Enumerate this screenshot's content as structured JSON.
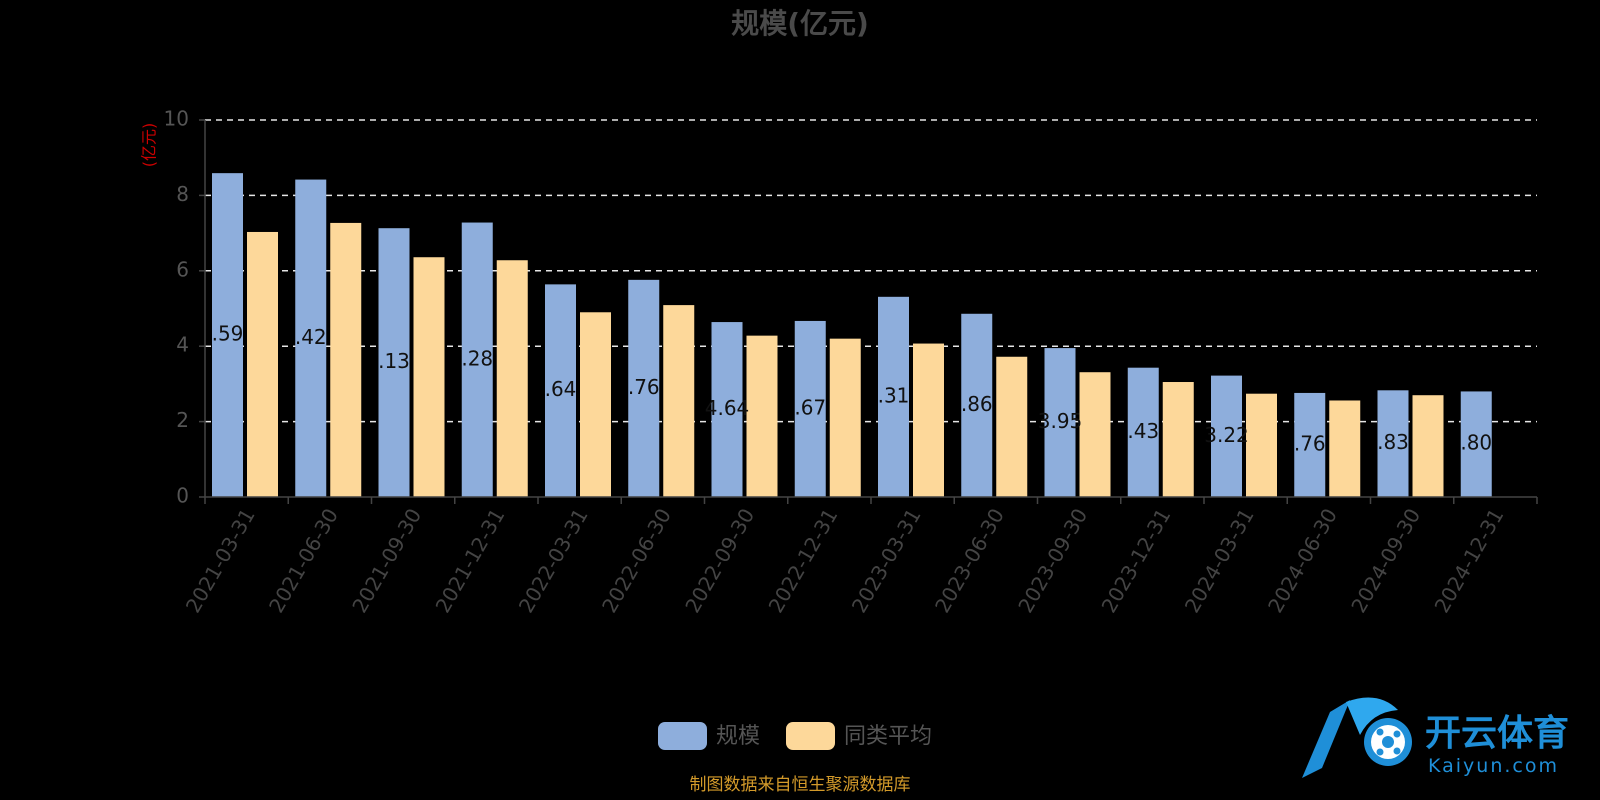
{
  "chart_data": {
    "type": "bar",
    "title": "规模(亿元)",
    "ylabel": "(亿元)",
    "ylim": [
      0,
      10
    ],
    "yticks": [
      0,
      2,
      4,
      6,
      8,
      10
    ],
    "grid": true,
    "legend_position": "bottom",
    "categories": [
      "2021-03-31",
      "2021-06-30",
      "2021-09-30",
      "2021-12-31",
      "2022-03-31",
      "2022-06-30",
      "2022-09-30",
      "2022-12-31",
      "2023-03-31",
      "2023-06-30",
      "2023-09-30",
      "2023-12-31",
      "2024-03-31",
      "2024-06-30",
      "2024-09-30",
      "2024-12-31"
    ],
    "series": [
      {
        "name": "规模",
        "color": "#8eaedc",
        "values": [
          8.59,
          8.42,
          7.13,
          7.28,
          5.64,
          5.76,
          4.64,
          4.67,
          5.31,
          4.86,
          3.95,
          3.43,
          3.22,
          2.76,
          2.83,
          2.8
        ],
        "labels": [
          ".59",
          ".42",
          ".13",
          ".28",
          ".64",
          ".76",
          "4.64",
          ".67",
          ".31",
          ".86",
          "3.95",
          ".43",
          "3.22",
          ".76",
          ".83",
          ".80"
        ]
      },
      {
        "name": "同类平均",
        "color": "#fdd89a",
        "values": [
          7.03,
          7.27,
          6.36,
          6.28,
          4.9,
          5.09,
          4.28,
          4.2,
          4.07,
          3.72,
          3.31,
          3.05,
          2.74,
          2.56,
          2.7,
          null
        ]
      }
    ]
  },
  "footer": {
    "source": "制图数据来自恒生聚源数据库"
  },
  "watermark": {
    "brand": "开云体育",
    "url": "Kaiyun.com",
    "mark": "K"
  }
}
